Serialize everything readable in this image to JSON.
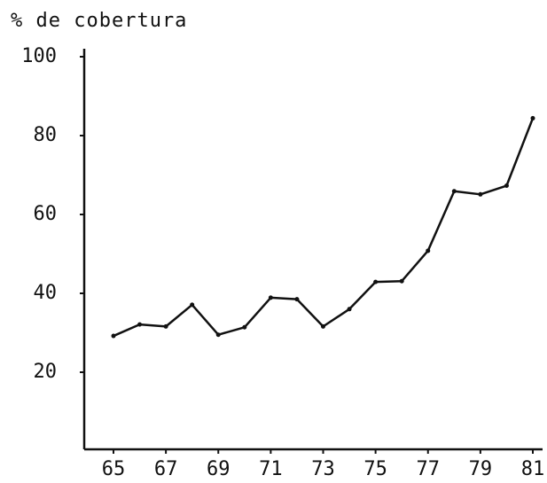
{
  "chart_data": {
    "type": "line",
    "title": "% de cobertura",
    "x": [
      65,
      66,
      67,
      68,
      69,
      70,
      71,
      72,
      73,
      74,
      75,
      76,
      77,
      78,
      79,
      80,
      81
    ],
    "series": [
      {
        "color": "#111111",
        "values": [
          29.2,
          32.1,
          31.6,
          37.1,
          29.5,
          31.4,
          38.9,
          38.5,
          31.6,
          36.0,
          42.9,
          43.1,
          50.8,
          65.9,
          65.1,
          67.3,
          84.4
        ]
      }
    ],
    "xlim": [
      65,
      81
    ],
    "xticks": [
      65,
      67,
      69,
      71,
      73,
      75,
      77,
      79,
      81
    ],
    "ylim": [
      0,
      100
    ],
    "yticks": [
      20,
      40,
      60,
      80,
      100
    ],
    "grid": false
  }
}
